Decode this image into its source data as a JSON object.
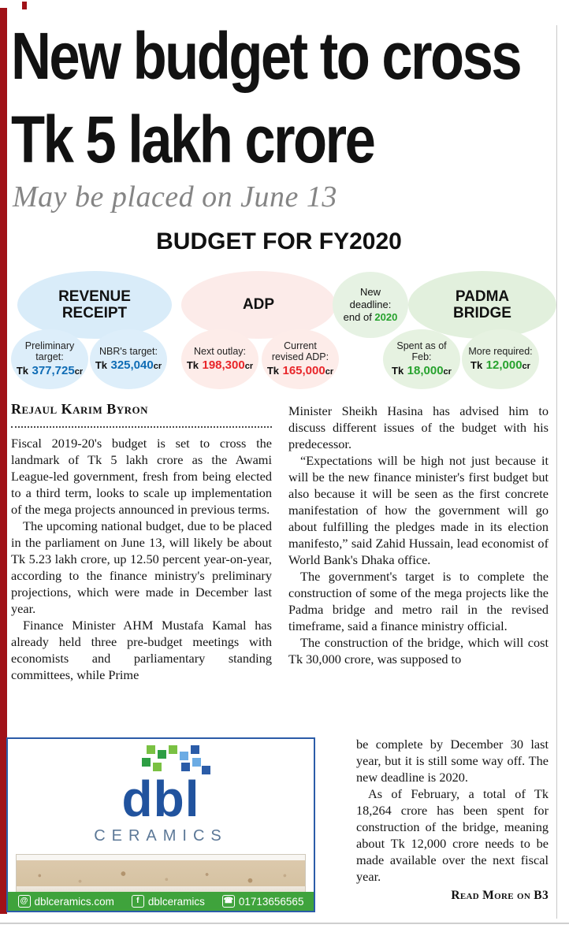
{
  "page": {
    "accent_red": "#a01218",
    "rule_gray": "#c9c9c9"
  },
  "masthead": {
    "headline_line1": "New budget to cross",
    "headline_line2": "Tk 5 lakh crore",
    "subhead": "May be placed on June 13"
  },
  "infographic": {
    "title": "BUDGET FOR FY2020",
    "groups": [
      {
        "title": "REVENUE RECEIPT",
        "color": "#d9ecf9",
        "value_color": "#0f6cb5"
      },
      {
        "title": "ADP",
        "color": "#fcebe9",
        "value_color": "#e8262a"
      },
      {
        "title": "PADMA BRIDGE",
        "color": "#e2f0dd",
        "value_color": "#27a22e"
      }
    ],
    "deadline": {
      "line1": "New",
      "line2": "deadline:",
      "line3_prefix": "end of ",
      "line3_value": "2020",
      "value_color": "#27a22e"
    },
    "bubbles": [
      {
        "label": "Preliminary target:",
        "tk": "Tk",
        "number": "377,725",
        "cr": "cr"
      },
      {
        "label": "NBR's target:",
        "tk": "Tk",
        "number": "325,040",
        "cr": "cr"
      },
      {
        "label": "Next outlay:",
        "tk": "Tk",
        "number": "198,300",
        "cr": "cr"
      },
      {
        "label": "Current revised ADP:",
        "tk": "Tk",
        "number": "165,000",
        "cr": "cr"
      },
      {
        "label": "Spent as of Feb:",
        "tk": "Tk",
        "number": "18,000",
        "cr": "cr"
      },
      {
        "label": "More required:",
        "tk": "Tk",
        "number": "12,000",
        "cr": "cr"
      }
    ]
  },
  "article": {
    "byline": "Rejaul Karim Byron",
    "col1": [
      "Fiscal 2019-20's budget is set to cross the landmark of Tk 5 lakh crore as the Awami League-led government, fresh from being elected to a third term, looks to scale up implementation of the mega projects announced in previous terms.",
      "The upcoming national budget, due to be placed in the parliament on June 13, will likely be about Tk 5.23 lakh crore, up 12.50 percent year-on-year, according to the finance ministry's preliminary projections, which were made in December last year.",
      "Finance Minister AHM Mustafa Kamal has already held three pre-budget meetings with economists and parliamentary standing committees, while Prime"
    ],
    "col2": [
      "Minister Sheikh Hasina has advised him to discuss different issues of the budget with his predecessor.",
      "“Expectations will be high not just because it will be the new finance minister's first budget but also because it will be seen as the first concrete manifestation of how the government will go about fulfilling the pledges made in its election manifesto,” said Zahid Hussain, lead economist of World Bank's Dhaka office.",
      "The government's target is to complete the construction of some of the mega projects like the Padma bridge and metro rail in the revised timeframe, said a finance ministry official.",
      "The construction of the bridge, which will cost Tk 30,000 crore, was supposed to"
    ],
    "col2_narrow": [
      "be complete by December 30 last year, but it is still some way off. The new deadline is 2020.",
      "As of February, a total of Tk 18,264 crore has been spent for construction of the bridge, meaning about Tk 12,000 crore needs to be made available over the next fiscal year."
    ],
    "read_more": "Read More on B3"
  },
  "ad": {
    "logo": "dbl",
    "logo_sub": "CERAMICS",
    "brand_blue": "#21539e",
    "brand_green": "#3fa33c",
    "contacts": [
      {
        "icon": "web-icon",
        "glyph": "@",
        "text": "dblceramics.com"
      },
      {
        "icon": "facebook-icon",
        "glyph": "f",
        "text": "dblceramics"
      },
      {
        "icon": "phone-icon",
        "glyph": "☎",
        "text": "01713656565"
      }
    ]
  }
}
